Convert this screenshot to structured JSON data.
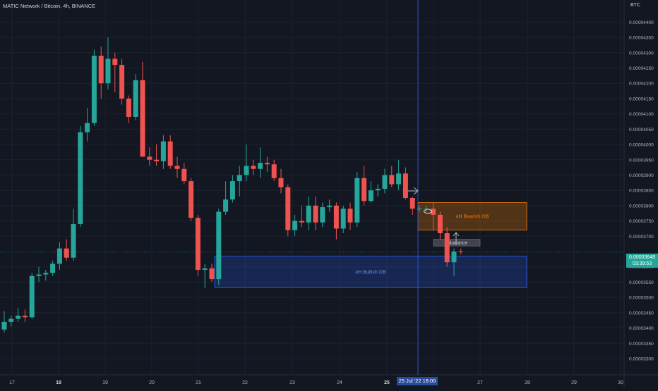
{
  "header": {
    "symbol_line": "MATIC Network / Bitcoin, 4h, BINANCE"
  },
  "price_axis": {
    "currency": "BTC",
    "labels": [
      "0.00004400",
      "0.00004350",
      "0.00004300",
      "0.00004250",
      "0.00004200",
      "0.00004150",
      "0.00004100",
      "0.00004050",
      "0.00004000",
      "0.00003950",
      "0.00003900",
      "0.00003850",
      "0.00003800",
      "0.00003750",
      "0.00003700",
      "0.00003600",
      "0.00003550",
      "0.00003500",
      "0.00003450",
      "0.00003400",
      "0.00003350",
      "0.00003300"
    ],
    "current_price": "0.00003648",
    "countdown": "03:39:53"
  },
  "time_axis": {
    "labels": [
      "17",
      "18",
      "19",
      "20",
      "21",
      "22",
      "23",
      "24",
      "25",
      "26",
      "27",
      "28",
      "29",
      "30"
    ],
    "bold_labels": [
      "18",
      "25"
    ],
    "crosshair_label": "25 Jul '22   18:00"
  },
  "annotations": {
    "bearish_ob": "4H Bearish OB",
    "bullish_ob": "4H Bullish OB",
    "imbalance": "Imbalance"
  },
  "colors": {
    "background": "#131722",
    "up": "#26a69a",
    "down": "#ef5350",
    "grid": "#1e222d",
    "crosshair": "#2962ff",
    "bearish_box": "#f57c00",
    "bullish_box": "#2962ff"
  },
  "chart_data": {
    "type": "candlestick",
    "symbol": "MATICBTC",
    "interval": "4h",
    "ylim": [
      3.27e-05,
      4.44e-05
    ],
    "candles": [
      {
        "o": 3.395e-05,
        "h": 3.455e-05,
        "l": 3.385e-05,
        "c": 3.42e-05
      },
      {
        "o": 3.42e-05,
        "h": 3.44e-05,
        "l": 3.405e-05,
        "c": 3.43e-05
      },
      {
        "o": 3.43e-05,
        "h": 3.465e-05,
        "l": 3.42e-05,
        "c": 3.44e-05
      },
      {
        "o": 3.44e-05,
        "h": 3.46e-05,
        "l": 3.42e-05,
        "c": 3.435e-05
      },
      {
        "o": 3.435e-05,
        "h": 3.58e-05,
        "l": 3.43e-05,
        "c": 3.57e-05
      },
      {
        "o": 3.57e-05,
        "h": 3.6e-05,
        "l": 3.55e-05,
        "c": 3.575e-05
      },
      {
        "o": 3.575e-05,
        "h": 3.59e-05,
        "l": 3.555e-05,
        "c": 3.58e-05
      },
      {
        "o": 3.58e-05,
        "h": 3.62e-05,
        "l": 3.57e-05,
        "c": 3.61e-05
      },
      {
        "o": 3.61e-05,
        "h": 3.68e-05,
        "l": 3.59e-05,
        "c": 3.66e-05
      },
      {
        "o": 3.66e-05,
        "h": 3.69e-05,
        "l": 3.62e-05,
        "c": 3.63e-05
      },
      {
        "o": 3.63e-05,
        "h": 3.79e-05,
        "l": 3.62e-05,
        "c": 3.74e-05
      },
      {
        "o": 3.74e-05,
        "h": 4.06e-05,
        "l": 3.73e-05,
        "c": 4.04e-05
      },
      {
        "o": 4.04e-05,
        "h": 4.12e-05,
        "l": 4.01e-05,
        "c": 4.07e-05
      },
      {
        "o": 4.07e-05,
        "h": 4.31e-05,
        "l": 4.06e-05,
        "c": 4.29e-05
      },
      {
        "o": 4.29e-05,
        "h": 4.32e-05,
        "l": 4.15e-05,
        "c": 4.2e-05
      },
      {
        "o": 4.2e-05,
        "h": 4.35e-05,
        "l": 4.18e-05,
        "c": 4.28e-05
      },
      {
        "o": 4.28e-05,
        "h": 4.3e-05,
        "l": 4.17e-05,
        "c": 4.26e-05
      },
      {
        "o": 4.26e-05,
        "h": 4.28e-05,
        "l": 4.13e-05,
        "c": 4.15e-05
      },
      {
        "o": 4.15e-05,
        "h": 4.16e-05,
        "l": 4.07e-05,
        "c": 4.09e-05
      },
      {
        "o": 4.09e-05,
        "h": 4.23e-05,
        "l": 4.08e-05,
        "c": 4.21e-05
      },
      {
        "o": 4.21e-05,
        "h": 4.27e-05,
        "l": 3.96e-05,
        "c": 3.96e-05
      },
      {
        "o": 3.96e-05,
        "h": 3.99e-05,
        "l": 3.93e-05,
        "c": 3.95e-05
      },
      {
        "o": 3.95e-05,
        "h": 4e-05,
        "l": 3.93e-05,
        "c": 3.945e-05
      },
      {
        "o": 3.945e-05,
        "h": 4.03e-05,
        "l": 3.92e-05,
        "c": 4.01e-05
      },
      {
        "o": 4.01e-05,
        "h": 4.03e-05,
        "l": 3.92e-05,
        "c": 3.93e-05
      },
      {
        "o": 3.93e-05,
        "h": 3.96e-05,
        "l": 3.89e-05,
        "c": 3.92e-05
      },
      {
        "o": 3.92e-05,
        "h": 3.94e-05,
        "l": 3.87e-05,
        "c": 3.88e-05
      },
      {
        "o": 3.88e-05,
        "h": 3.89e-05,
        "l": 3.75e-05,
        "c": 3.76e-05
      },
      {
        "o": 3.76e-05,
        "h": 3.77e-05,
        "l": 3.57e-05,
        "c": 3.59e-05
      },
      {
        "o": 3.59e-05,
        "h": 3.61e-05,
        "l": 3.53e-05,
        "c": 3.595e-05
      },
      {
        "o": 3.595e-05,
        "h": 3.61e-05,
        "l": 3.55e-05,
        "c": 3.56e-05
      },
      {
        "o": 3.56e-05,
        "h": 3.79e-05,
        "l": 3.54e-05,
        "c": 3.78e-05
      },
      {
        "o": 3.78e-05,
        "h": 3.88e-05,
        "l": 3.77e-05,
        "c": 3.82e-05
      },
      {
        "o": 3.82e-05,
        "h": 3.9e-05,
        "l": 3.81e-05,
        "c": 3.88e-05
      },
      {
        "o": 3.88e-05,
        "h": 3.93e-05,
        "l": 3.83e-05,
        "c": 3.9e-05
      },
      {
        "o": 3.9e-05,
        "h": 4e-05,
        "l": 3.88e-05,
        "c": 3.93e-05
      },
      {
        "o": 3.93e-05,
        "h": 3.95e-05,
        "l": 3.9e-05,
        "c": 3.92e-05
      },
      {
        "o": 3.92e-05,
        "h": 3.99e-05,
        "l": 3.89e-05,
        "c": 3.94e-05
      },
      {
        "o": 3.94e-05,
        "h": 3.96e-05,
        "l": 3.91e-05,
        "c": 3.935e-05
      },
      {
        "o": 3.935e-05,
        "h": 3.95e-05,
        "l": 3.88e-05,
        "c": 3.89e-05
      },
      {
        "o": 3.89e-05,
        "h": 3.92e-05,
        "l": 3.84e-05,
        "c": 3.86e-05
      },
      {
        "o": 3.86e-05,
        "h": 3.87e-05,
        "l": 3.7e-05,
        "c": 3.72e-05
      },
      {
        "o": 3.72e-05,
        "h": 3.77e-05,
        "l": 3.7e-05,
        "c": 3.75e-05
      },
      {
        "o": 3.75e-05,
        "h": 3.8e-05,
        "l": 3.73e-05,
        "c": 3.745e-05
      },
      {
        "o": 3.745e-05,
        "h": 3.83e-05,
        "l": 3.72e-05,
        "c": 3.8e-05
      },
      {
        "o": 3.8e-05,
        "h": 3.83e-05,
        "l": 3.72e-05,
        "c": 3.745e-05
      },
      {
        "o": 3.745e-05,
        "h": 3.81e-05,
        "l": 3.73e-05,
        "c": 3.795e-05
      },
      {
        "o": 3.795e-05,
        "h": 3.82e-05,
        "l": 3.78e-05,
        "c": 3.8e-05
      },
      {
        "o": 3.8e-05,
        "h": 3.81e-05,
        "l": 3.69e-05,
        "c": 3.725e-05
      },
      {
        "o": 3.725e-05,
        "h": 3.8e-05,
        "l": 3.71e-05,
        "c": 3.79e-05
      },
      {
        "o": 3.79e-05,
        "h": 3.81e-05,
        "l": 3.72e-05,
        "c": 3.745e-05
      },
      {
        "o": 3.745e-05,
        "h": 3.91e-05,
        "l": 3.73e-05,
        "c": 3.89e-05
      },
      {
        "o": 3.89e-05,
        "h": 3.93e-05,
        "l": 3.8e-05,
        "c": 3.815e-05
      },
      {
        "o": 3.815e-05,
        "h": 3.88e-05,
        "l": 3.81e-05,
        "c": 3.85e-05
      },
      {
        "o": 3.85e-05,
        "h": 3.87e-05,
        "l": 3.83e-05,
        "c": 3.855e-05
      },
      {
        "o": 3.855e-05,
        "h": 3.92e-05,
        "l": 3.84e-05,
        "c": 3.9e-05
      },
      {
        "o": 3.9e-05,
        "h": 3.93e-05,
        "l": 3.86e-05,
        "c": 3.87e-05
      },
      {
        "o": 3.87e-05,
        "h": 3.95e-05,
        "l": 3.85e-05,
        "c": 3.905e-05
      },
      {
        "o": 3.905e-05,
        "h": 3.925e-05,
        "l": 3.82e-05,
        "c": 3.825e-05
      },
      {
        "o": 3.825e-05,
        "h": 3.83e-05,
        "l": 3.77e-05,
        "c": 3.79e-05
      },
      {
        "o": 3.79e-05,
        "h": 3.8e-05,
        "l": 3.78e-05,
        "c": 3.79e-05
      },
      {
        "o": 3.79e-05,
        "h": 3.8e-05,
        "l": 3.78e-05,
        "c": 3.79e-05
      },
      {
        "o": 3.79e-05,
        "h": 3.81e-05,
        "l": 3.72e-05,
        "c": 3.77e-05
      },
      {
        "o": 3.77e-05,
        "h": 3.78e-05,
        "l": 3.69e-05,
        "c": 3.71e-05
      },
      {
        "o": 3.71e-05,
        "h": 3.73e-05,
        "l": 3.6e-05,
        "c": 3.615e-05
      },
      {
        "o": 3.615e-05,
        "h": 3.66e-05,
        "l": 3.57e-05,
        "c": 3.65e-05
      },
      {
        "o": 3.65e-05,
        "h": 3.66e-05,
        "l": 3.64e-05,
        "c": 3.648e-05
      }
    ],
    "zones": [
      {
        "name": "4H Bearish OB",
        "top": 3.81e-05,
        "bottom": 3.72e-05
      },
      {
        "name": "4H Bullish OB",
        "top": 3.635e-05,
        "bottom": 3.532e-05
      },
      {
        "name": "Imbalance",
        "top": 3.69e-05,
        "bottom": 3.668e-05
      }
    ],
    "last_price": 3.648e-05,
    "grid": true
  }
}
